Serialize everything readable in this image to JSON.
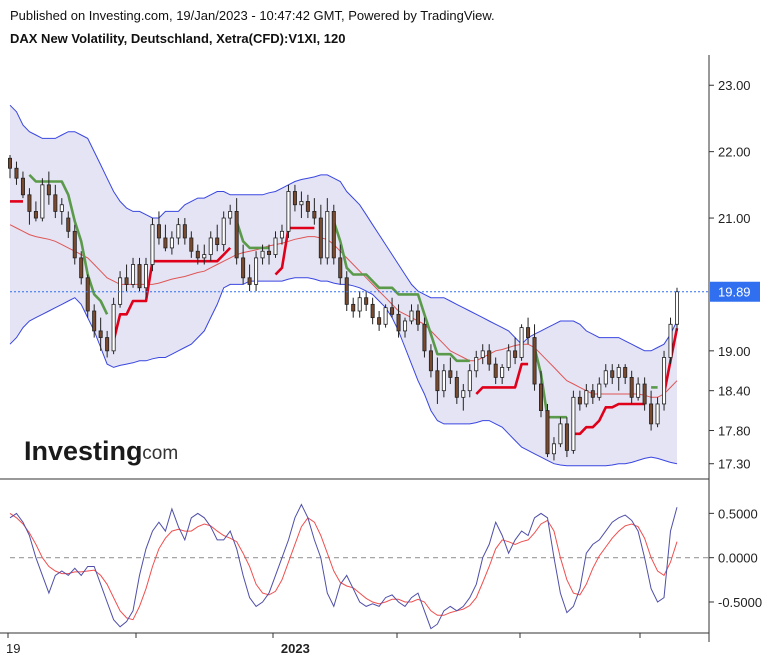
{
  "header": {
    "published": "Published on Investing.com, 19/Jan/2023 - 10:47:42 GMT, Powered by TradingView.",
    "title": "DAX New Volatility, Deutschland, Xetra(CFD):V1XI, 120"
  },
  "logo": {
    "brand": "Investing",
    "suffix": ".com"
  },
  "colors": {
    "band_fill": "#e4e4f4",
    "band_line": "#3a46e0",
    "ma": "#e05555",
    "candle_body": "#7a4a2e",
    "stop_up": "#e0001a",
    "stop_down": "#5a9a4a",
    "osc_fast": "#4f4fa8",
    "osc_slow": "#ef5050",
    "price_tag": "#2f6ff0"
  },
  "chart_data": [
    {
      "type": "candlestick",
      "title": "DAX New Volatility, Deutschland, Xetra(CFD):V1XI, 120",
      "ylim": [
        17.1,
        23.35
      ],
      "yticks": [
        "23.00",
        "22.00",
        "21.00",
        "19.00",
        "18.40",
        "17.80",
        "17.30"
      ],
      "last_price": "19.89",
      "xticks": [
        {
          "label": "19",
          "i": 0
        },
        {
          "label": "2023",
          "i": 44
        }
      ],
      "candles": [
        [
          21.9,
          21.95,
          21.6,
          21.75
        ],
        [
          21.75,
          21.85,
          21.5,
          21.6
        ],
        [
          21.6,
          21.7,
          21.3,
          21.35
        ],
        [
          21.35,
          21.45,
          20.9,
          21.1
        ],
        [
          21.1,
          21.25,
          20.95,
          21.0
        ],
        [
          21.0,
          21.6,
          20.95,
          21.5
        ],
        [
          21.5,
          21.7,
          21.2,
          21.35
        ],
        [
          21.35,
          21.5,
          21.0,
          21.1
        ],
        [
          21.1,
          21.3,
          20.9,
          21.2
        ],
        [
          21.0,
          21.1,
          20.7,
          20.8
        ],
        [
          20.8,
          20.9,
          20.3,
          20.4
        ],
        [
          20.4,
          20.5,
          20.0,
          20.1
        ],
        [
          20.1,
          20.15,
          19.5,
          19.6
        ],
        [
          19.6,
          19.7,
          19.2,
          19.3
        ],
        [
          19.3,
          19.5,
          19.0,
          19.2
        ],
        [
          19.2,
          19.3,
          18.9,
          19.0
        ],
        [
          19.0,
          19.8,
          18.95,
          19.7
        ],
        [
          19.7,
          20.2,
          19.65,
          20.1
        ],
        [
          20.1,
          20.3,
          19.9,
          20.0
        ],
        [
          20.0,
          20.4,
          19.95,
          20.3
        ],
        [
          20.3,
          20.4,
          19.9,
          19.95
        ],
        [
          19.95,
          20.4,
          19.8,
          20.3
        ],
        [
          20.3,
          21.0,
          20.2,
          20.9
        ],
        [
          20.9,
          21.1,
          20.6,
          20.7
        ],
        [
          20.7,
          20.9,
          20.5,
          20.55
        ],
        [
          20.55,
          20.8,
          20.45,
          20.7
        ],
        [
          20.7,
          21.0,
          20.6,
          20.9
        ],
        [
          20.9,
          21.0,
          20.6,
          20.7
        ],
        [
          20.7,
          20.8,
          20.4,
          20.5
        ],
        [
          20.5,
          20.6,
          20.3,
          20.4
        ],
        [
          20.4,
          20.6,
          20.3,
          20.45
        ],
        [
          20.45,
          20.8,
          20.35,
          20.7
        ],
        [
          20.7,
          20.9,
          20.5,
          20.6
        ],
        [
          20.6,
          21.1,
          20.5,
          21.0
        ],
        [
          21.0,
          21.2,
          20.9,
          21.1
        ],
        [
          21.1,
          21.3,
          20.3,
          20.4
        ],
        [
          20.4,
          20.6,
          20.0,
          20.1
        ],
        [
          20.1,
          20.3,
          19.9,
          20.0
        ],
        [
          20.0,
          20.5,
          19.9,
          20.4
        ],
        [
          20.4,
          20.6,
          20.3,
          20.5
        ],
        [
          20.5,
          20.6,
          20.3,
          20.45
        ],
        [
          20.45,
          20.8,
          20.4,
          20.7
        ],
        [
          20.7,
          20.9,
          20.6,
          20.8
        ],
        [
          20.8,
          21.5,
          20.7,
          21.4
        ],
        [
          21.4,
          21.5,
          21.1,
          21.2
        ],
        [
          21.2,
          21.4,
          21.0,
          21.25
        ],
        [
          21.25,
          21.35,
          21.0,
          21.1
        ],
        [
          21.1,
          21.3,
          20.9,
          21.0
        ],
        [
          21.0,
          21.2,
          20.3,
          20.4
        ],
        [
          20.4,
          21.3,
          20.3,
          21.1
        ],
        [
          21.1,
          21.2,
          20.3,
          20.4
        ],
        [
          20.4,
          20.6,
          20.0,
          20.1
        ],
        [
          20.1,
          20.2,
          19.6,
          19.7
        ],
        [
          19.7,
          19.8,
          19.5,
          19.6
        ],
        [
          19.6,
          19.9,
          19.5,
          19.8
        ],
        [
          19.8,
          19.9,
          19.6,
          19.7
        ],
        [
          19.7,
          19.8,
          19.4,
          19.5
        ],
        [
          19.5,
          19.6,
          19.3,
          19.4
        ],
        [
          19.4,
          19.7,
          19.35,
          19.65
        ],
        [
          19.65,
          19.8,
          19.5,
          19.55
        ],
        [
          19.55,
          19.7,
          19.2,
          19.3
        ],
        [
          19.3,
          19.5,
          19.2,
          19.45
        ],
        [
          19.45,
          19.7,
          19.4,
          19.6
        ],
        [
          19.6,
          19.7,
          19.3,
          19.4
        ],
        [
          19.4,
          19.5,
          18.9,
          19.0
        ],
        [
          19.0,
          19.1,
          18.6,
          18.7
        ],
        [
          18.7,
          18.9,
          18.2,
          18.4
        ],
        [
          18.4,
          18.8,
          18.3,
          18.7
        ],
        [
          18.7,
          18.9,
          18.5,
          18.6
        ],
        [
          18.6,
          18.7,
          18.2,
          18.3
        ],
        [
          18.3,
          18.5,
          18.1,
          18.4
        ],
        [
          18.4,
          18.8,
          18.3,
          18.7
        ],
        [
          18.7,
          19.0,
          18.6,
          18.9
        ],
        [
          18.9,
          19.1,
          18.8,
          19.0
        ],
        [
          19.0,
          19.1,
          18.7,
          18.8
        ],
        [
          18.8,
          18.9,
          18.5,
          18.6
        ],
        [
          18.6,
          18.8,
          18.5,
          18.75
        ],
        [
          18.75,
          19.1,
          18.7,
          19.0
        ],
        [
          19.0,
          19.2,
          18.8,
          18.9
        ],
        [
          18.9,
          19.4,
          18.85,
          19.35
        ],
        [
          19.35,
          19.5,
          19.1,
          19.2
        ],
        [
          19.2,
          19.4,
          18.4,
          18.5
        ],
        [
          18.5,
          18.7,
          18.0,
          18.1
        ],
        [
          18.1,
          18.2,
          17.4,
          17.45
        ],
        [
          17.45,
          17.7,
          17.35,
          17.6
        ],
        [
          17.6,
          18.0,
          17.55,
          17.9
        ],
        [
          17.9,
          18.0,
          17.4,
          17.5
        ],
        [
          17.5,
          18.4,
          17.45,
          18.3
        ],
        [
          18.3,
          18.4,
          18.1,
          18.2
        ],
        [
          18.2,
          18.5,
          18.15,
          18.4
        ],
        [
          18.4,
          18.5,
          18.2,
          18.3
        ],
        [
          18.3,
          18.6,
          18.25,
          18.5
        ],
        [
          18.5,
          18.8,
          18.45,
          18.7
        ],
        [
          18.7,
          18.8,
          18.5,
          18.6
        ],
        [
          18.6,
          18.8,
          18.4,
          18.75
        ],
        [
          18.75,
          18.8,
          18.5,
          18.6
        ],
        [
          18.6,
          18.7,
          18.2,
          18.3
        ],
        [
          18.3,
          18.6,
          18.25,
          18.5
        ],
        [
          18.5,
          18.6,
          18.1,
          18.2
        ],
        [
          18.2,
          18.4,
          17.8,
          17.9
        ],
        [
          17.9,
          18.3,
          17.85,
          18.2
        ],
        [
          18.2,
          19.0,
          18.1,
          18.9
        ],
        [
          18.9,
          19.5,
          18.8,
          19.4
        ],
        [
          19.4,
          19.95,
          19.3,
          19.89
        ]
      ],
      "bb_mid": [
        20.9,
        20.85,
        20.8,
        20.75,
        20.72,
        20.7,
        20.68,
        20.65,
        20.6,
        20.55,
        20.5,
        20.45,
        20.4,
        20.3,
        20.2,
        20.1,
        20.05,
        20.0,
        20.0,
        20.0,
        20.0,
        20.0,
        20.0,
        20.02,
        20.05,
        20.08,
        20.1,
        20.12,
        20.15,
        20.18,
        20.2,
        20.25,
        20.3,
        20.35,
        20.4,
        20.45,
        20.48,
        20.5,
        20.52,
        20.55,
        20.58,
        20.6,
        20.62,
        20.65,
        20.68,
        20.7,
        20.72,
        20.72,
        20.7,
        20.68,
        20.6,
        20.5,
        20.4,
        20.3,
        20.2,
        20.1,
        20.0,
        19.9,
        19.8,
        19.7,
        19.6,
        19.55,
        19.5,
        19.45,
        19.4,
        19.3,
        19.2,
        19.1,
        19.0,
        18.95,
        18.9,
        18.85,
        18.85,
        18.9,
        18.95,
        19.0,
        19.02,
        19.05,
        19.08,
        19.1,
        19.1,
        19.05,
        18.95,
        18.85,
        18.75,
        18.65,
        18.55,
        18.5,
        18.45,
        18.4,
        18.35,
        18.35,
        18.35,
        18.35,
        18.35,
        18.35,
        18.35,
        18.35,
        18.33,
        18.3,
        18.3,
        18.35,
        18.45,
        18.55
      ],
      "bb_upper": [
        22.7,
        22.6,
        22.4,
        22.3,
        22.25,
        22.2,
        22.2,
        22.2,
        22.25,
        22.3,
        22.3,
        22.25,
        22.2,
        22.0,
        21.8,
        21.6,
        21.4,
        21.25,
        21.15,
        21.1,
        21.1,
        21.05,
        21.0,
        21.0,
        21.1,
        21.1,
        21.1,
        21.2,
        21.25,
        21.3,
        21.3,
        21.35,
        21.4,
        21.4,
        21.35,
        21.35,
        21.35,
        21.35,
        21.35,
        21.35,
        21.38,
        21.4,
        21.45,
        21.5,
        21.55,
        21.58,
        21.6,
        21.62,
        21.65,
        21.65,
        21.6,
        21.55,
        21.4,
        21.3,
        21.2,
        21.05,
        20.9,
        20.75,
        20.6,
        20.45,
        20.3,
        20.15,
        20.0,
        19.9,
        19.85,
        19.8,
        19.8,
        19.8,
        19.75,
        19.7,
        19.65,
        19.6,
        19.55,
        19.5,
        19.45,
        19.4,
        19.35,
        19.3,
        19.2,
        19.1,
        19.2,
        19.25,
        19.3,
        19.35,
        19.4,
        19.45,
        19.45,
        19.45,
        19.4,
        19.3,
        19.25,
        19.2,
        19.2,
        19.2,
        19.2,
        19.15,
        19.1,
        19.05,
        19.0,
        19.0,
        19.05,
        19.1,
        19.25,
        19.45
      ],
      "bb_lower": [
        19.1,
        19.2,
        19.35,
        19.45,
        19.5,
        19.55,
        19.6,
        19.65,
        19.7,
        19.75,
        19.8,
        19.7,
        19.5,
        19.3,
        19.05,
        18.8,
        18.75,
        18.78,
        18.8,
        18.82,
        18.85,
        18.85,
        18.88,
        18.9,
        18.9,
        18.95,
        19.0,
        19.05,
        19.1,
        19.2,
        19.3,
        19.5,
        19.7,
        19.95,
        20.0,
        20.0,
        20.0,
        20.05,
        20.05,
        20.05,
        20.05,
        20.05,
        20.05,
        20.08,
        20.1,
        20.1,
        20.1,
        20.08,
        20.05,
        20.05,
        20.02,
        20.0,
        20.0,
        19.98,
        19.95,
        19.9,
        19.85,
        19.75,
        19.65,
        19.5,
        19.3,
        19.05,
        18.8,
        18.55,
        18.35,
        18.1,
        17.95,
        17.9,
        17.9,
        17.9,
        17.9,
        17.9,
        17.92,
        17.95,
        17.95,
        17.9,
        17.85,
        17.75,
        17.65,
        17.55,
        17.5,
        17.45,
        17.4,
        17.35,
        17.3,
        17.28,
        17.27,
        17.27,
        17.27,
        17.27,
        17.27,
        17.27,
        17.27,
        17.28,
        17.3,
        17.3,
        17.32,
        17.35,
        17.38,
        17.4,
        17.38,
        17.35,
        17.32,
        17.3
      ]
    },
    {
      "type": "line",
      "ylim": [
        -0.85,
        0.82
      ],
      "yticks": [
        "0.5000",
        "0.0000",
        "-0.5000"
      ],
      "zero_line": 0,
      "series": [
        {
          "values": [
            0.45,
            0.5,
            0.4,
            0.25,
            0.0,
            -0.2,
            -0.4,
            -0.2,
            -0.15,
            -0.2,
            -0.12,
            -0.2,
            -0.1,
            -0.1,
            -0.3,
            -0.5,
            -0.7,
            -0.78,
            -0.72,
            -0.6,
            -0.2,
            0.1,
            0.3,
            0.4,
            0.3,
            0.55,
            0.35,
            0.2,
            0.45,
            0.5,
            0.45,
            0.35,
            0.2,
            0.2,
            0.3,
            0.1,
            -0.2,
            -0.45,
            -0.55,
            -0.5,
            -0.4,
            -0.2,
            0.0,
            0.2,
            0.45,
            0.6,
            0.45,
            0.2,
            0.0,
            -0.4,
            -0.55,
            -0.3,
            -0.2,
            -0.35,
            -0.5,
            -0.55,
            -0.52,
            -0.55,
            -0.45,
            -0.42,
            -0.5,
            -0.55,
            -0.45,
            -0.4,
            -0.6,
            -0.8,
            -0.75,
            -0.6,
            -0.55,
            -0.6,
            -0.55,
            -0.45,
            -0.3,
            0.0,
            0.15,
            0.4,
            0.25,
            0.05,
            0.2,
            0.3,
            0.25,
            0.45,
            0.5,
            0.45,
            0.0,
            -0.4,
            -0.62,
            -0.55,
            -0.35,
            0.05,
            0.15,
            0.2,
            0.3,
            0.4,
            0.45,
            0.48,
            0.42,
            0.3,
            0.0,
            -0.35,
            -0.5,
            -0.45,
            0.3,
            0.57
          ]
        },
        {
          "values": [
            0.5,
            0.45,
            0.38,
            0.28,
            0.15,
            0.0,
            -0.1,
            -0.15,
            -0.18,
            -0.18,
            -0.16,
            -0.16,
            -0.15,
            -0.14,
            -0.2,
            -0.3,
            -0.45,
            -0.6,
            -0.68,
            -0.7,
            -0.55,
            -0.35,
            -0.1,
            0.1,
            0.22,
            0.3,
            0.32,
            0.3,
            0.3,
            0.35,
            0.38,
            0.36,
            0.3,
            0.25,
            0.22,
            0.18,
            0.05,
            -0.1,
            -0.3,
            -0.4,
            -0.42,
            -0.38,
            -0.25,
            -0.05,
            0.15,
            0.35,
            0.45,
            0.4,
            0.25,
            0.05,
            -0.15,
            -0.28,
            -0.32,
            -0.34,
            -0.4,
            -0.46,
            -0.5,
            -0.52,
            -0.5,
            -0.47,
            -0.47,
            -0.5,
            -0.5,
            -0.47,
            -0.5,
            -0.6,
            -0.65,
            -0.65,
            -0.62,
            -0.6,
            -0.58,
            -0.54,
            -0.45,
            -0.28,
            -0.1,
            0.1,
            0.2,
            0.18,
            0.15,
            0.18,
            0.2,
            0.28,
            0.38,
            0.42,
            0.3,
            0.0,
            -0.25,
            -0.4,
            -0.42,
            -0.3,
            -0.12,
            0.02,
            0.12,
            0.22,
            0.3,
            0.36,
            0.38,
            0.35,
            0.22,
            0.0,
            -0.15,
            -0.2,
            -0.05,
            0.18
          ]
        }
      ]
    }
  ]
}
